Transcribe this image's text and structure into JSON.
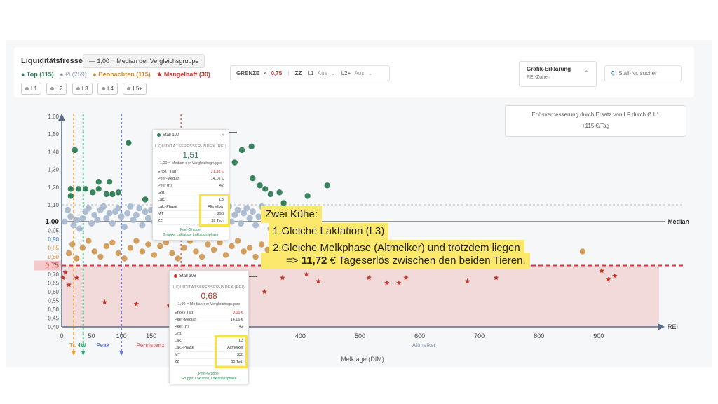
{
  "header": {
    "title": "Liquiditätsfresser",
    "median_chip": "— 1,00 = Median der Vergleichsgruppe",
    "legend": {
      "top": "● Top (115)",
      "avg": "● Ø (259)",
      "watch": "● Beobachten (115)",
      "poor": "★ Mangelhaft (30)"
    },
    "lact_chips": [
      "L1",
      "L2",
      "L3",
      "L4",
      "L5+"
    ],
    "controls": {
      "grenze_label": "GRENZE",
      "grenze_op": "<",
      "grenze_value": "0,75",
      "zz_label": "ZZ",
      "l1_label": "L1",
      "l1_value": "Aus",
      "l2_label": "L2+",
      "l2_value": "Aus"
    },
    "grafik_title": "Grafik-Erklärung",
    "grafik_sub": "REI-Zonen",
    "search_placeholder": "Stall-Nr. sucher"
  },
  "info_box": {
    "text": "Erlösverbesserung durch Ersatz von LF durch Ø L1",
    "value": "+115 €/Tag"
  },
  "colors": {
    "top": "#2e7d55",
    "avg": "#a8b9d0",
    "watch": "#d09a55",
    "poor": "#c0392b",
    "threshold": "#d9383a",
    "zone": "#f2dada"
  },
  "tooltip1": {
    "stall": "Stall 100",
    "caption": "LIQUIDITÄTSFRESSER-INDEX (REI)",
    "value": "1,51",
    "sub": "1,00 = Median der Vergleichsgruppe",
    "rows": [
      [
        "Erlös / Tag",
        "21,38 €"
      ],
      [
        "Peer-Median",
        "14,16 €"
      ],
      [
        "Peer (n)",
        "42"
      ],
      [
        "Grp.",
        ""
      ],
      [
        "Lak.",
        "L3"
      ],
      [
        "Lak.-Phase",
        "Altmelker"
      ],
      [
        "MT",
        "296"
      ],
      [
        "ZZ",
        "32 Tsd."
      ]
    ],
    "foot1": "Peer-Gruppe:",
    "foot2": "Gruppe, Laktation, Laktationsphase"
  },
  "tooltip2": {
    "stall": "Stall 306",
    "caption": "LIQUIDITÄTSFRESSER-INDEX (REI)",
    "value": "0,68",
    "sub": "1,00 = Median der Vergleichsgruppe",
    "rows": [
      [
        "Erlös / Tag",
        "9,66 €"
      ],
      [
        "Peer-Median",
        "14,16 €"
      ],
      [
        "Peer (n)",
        "42"
      ],
      [
        "Grp.",
        ""
      ],
      [
        "Lak.",
        "L3"
      ],
      [
        "Lak.-Phase",
        "Altmelker"
      ],
      [
        "MT",
        "330"
      ],
      [
        "ZZ",
        "50 Tsd."
      ]
    ],
    "foot1": "Peer-Gruppe:",
    "foot2": "Gruppe, Laktation, Laktationsphase"
  },
  "annotation": {
    "line1": "Zwei Kühe:",
    "line2": "1.Gleiche Laktation (L3)",
    "line3": "2.Gleiche Melkphase (Altmelker) und trotzdem liegen",
    "line4_pre": "=> ",
    "line4_bold": "11,72",
    "line4_post": " € Tageserlös zwischen den beiden Tieren."
  },
  "chart_data": {
    "type": "scatter",
    "xlabel": "Melktage (DIM)",
    "ylabel": "",
    "x_axis_end_label": "REI",
    "xlim": [
      0,
      1000
    ],
    "ylim": [
      0.4,
      1.6
    ],
    "x_ticks": [
      0,
      50,
      100,
      150,
      400,
      500,
      600,
      700,
      800,
      900
    ],
    "x_tick_labels": [
      "0",
      "50",
      "100",
      "150",
      "400",
      "500",
      "600",
      "700",
      "800",
      "900"
    ],
    "y_ticks": [
      0.4,
      0.45,
      0.5,
      0.55,
      0.6,
      0.65,
      0.7,
      0.75,
      0.8,
      0.85,
      0.9,
      0.95,
      1.0,
      1.1,
      1.2,
      1.3,
      1.4,
      1.5,
      1.6
    ],
    "y_tick_labels": [
      "0,40",
      "0,45",
      "0,50",
      "0,55",
      "0,60",
      "0,65",
      "0,70",
      "0,75",
      "0,80",
      "0,85",
      "0,90",
      "0,95",
      "1,00",
      "1,10",
      "1,20",
      "1,30",
      "1,40",
      "1,50",
      "1,60"
    ],
    "median": 1.0,
    "median_label": "Median",
    "threshold": 0.75,
    "threshold_label": "0,75",
    "upper_band": 1.1,
    "phase_lines": [
      {
        "x": 20,
        "label": "Tr.",
        "color": "#f39c32"
      },
      {
        "x": 36,
        "label": "4W",
        "color": "#2ea56e"
      },
      {
        "x": 100,
        "label": "Peak",
        "color": "#6674d8"
      },
      {
        "x": 200,
        "label": "Persistenz",
        "color": "#e07070"
      }
    ],
    "phase_text_late": "Altmelker",
    "highlight_arrows": [
      "Stall 100",
      "Stall 306"
    ],
    "series": [
      {
        "name": "Top (115)",
        "values": [
          [
            15,
            1.15
          ],
          [
            22,
            1.41
          ],
          [
            15,
            1.19
          ],
          [
            28,
            1.19
          ],
          [
            40,
            1.19
          ],
          [
            52,
            1.17
          ],
          [
            62,
            1.19
          ],
          [
            75,
            1.16
          ],
          [
            62,
            1.23
          ],
          [
            80,
            1.23
          ],
          [
            85,
            1.16
          ],
          [
            95,
            1.17
          ],
          [
            112,
            1.45
          ],
          [
            140,
            1.13
          ],
          [
            163,
            1.31
          ],
          [
            180,
            1.36
          ],
          [
            185,
            1.22
          ],
          [
            210,
            1.31
          ],
          [
            230,
            1.36
          ],
          [
            253,
            1.47
          ],
          [
            262,
            1.51
          ],
          [
            275,
            1.35
          ],
          [
            290,
            1.34
          ],
          [
            302,
            1.41
          ],
          [
            318,
            1.43
          ],
          [
            320,
            1.25
          ],
          [
            332,
            1.21
          ],
          [
            341,
            1.19
          ],
          [
            350,
            1.16
          ],
          [
            365,
            1.17
          ],
          [
            372,
            1.11
          ],
          [
            412,
            1.15
          ],
          [
            445,
            1.21
          ]
        ]
      },
      {
        "name": "Ø (259)",
        "values": [
          [
            5,
            1.0
          ],
          [
            10,
            1.07
          ],
          [
            15,
            1.03
          ],
          [
            20,
            0.98
          ],
          [
            25,
            1.01
          ],
          [
            30,
            0.96
          ],
          [
            35,
            1.02
          ],
          [
            40,
            1.06
          ],
          [
            45,
            1.08
          ],
          [
            50,
            0.99
          ],
          [
            55,
            1.04
          ],
          [
            60,
            1.01
          ],
          [
            65,
            1.07
          ],
          [
            70,
            1.09
          ],
          [
            75,
            1.02
          ],
          [
            80,
            1.05
          ],
          [
            85,
            0.99
          ],
          [
            90,
            1.06
          ],
          [
            95,
            1.08
          ],
          [
            100,
            1.03
          ],
          [
            105,
            0.97
          ],
          [
            110,
            1.05
          ],
          [
            115,
            1.09
          ],
          [
            120,
            1.01
          ],
          [
            125,
            1.04
          ],
          [
            130,
            1.08
          ],
          [
            135,
            0.98
          ],
          [
            140,
            1.06
          ],
          [
            145,
            1.02
          ],
          [
            150,
            1.07
          ],
          [
            155,
            1.0
          ],
          [
            160,
            1.09
          ],
          [
            165,
            1.04
          ],
          [
            170,
            0.98
          ],
          [
            175,
            1.06
          ],
          [
            180,
            1.02
          ],
          [
            185,
            1.08
          ],
          [
            190,
            1.01
          ],
          [
            195,
            1.05
          ],
          [
            200,
            0.97
          ],
          [
            205,
            1.06
          ],
          [
            210,
            1.03
          ],
          [
            215,
            1.09
          ],
          [
            220,
            1.0
          ],
          [
            225,
            1.04
          ],
          [
            230,
            1.07
          ],
          [
            235,
            0.99
          ],
          [
            240,
            1.05
          ],
          [
            245,
            1.02
          ],
          [
            250,
            1.08
          ],
          [
            255,
            1.01
          ],
          [
            260,
            1.04
          ],
          [
            265,
            0.97
          ],
          [
            270,
            1.06
          ],
          [
            275,
            1.03
          ],
          [
            280,
            1.09
          ],
          [
            285,
            1.0
          ],
          [
            290,
            1.04
          ],
          [
            295,
            1.07
          ],
          [
            300,
            0.99
          ],
          [
            305,
            1.05
          ],
          [
            310,
            1.08
          ],
          [
            315,
            1.02
          ],
          [
            320,
            1.06
          ],
          [
            325,
            0.98
          ],
          [
            330,
            1.03
          ],
          [
            335,
            1.09
          ],
          [
            340,
            1.01
          ],
          [
            345,
            1.05
          ],
          [
            350,
            0.96
          ],
          [
            355,
            1.04
          ],
          [
            360,
            1.07
          ],
          [
            365,
            1.0
          ],
          [
            370,
            1.03
          ]
        ]
      },
      {
        "name": "Beobachten (115)",
        "values": [
          [
            12,
            0.82
          ],
          [
            18,
            0.87
          ],
          [
            25,
            0.79
          ],
          [
            35,
            0.85
          ],
          [
            45,
            0.89
          ],
          [
            55,
            0.83
          ],
          [
            65,
            0.8
          ],
          [
            75,
            0.86
          ],
          [
            85,
            0.88
          ],
          [
            95,
            0.82
          ],
          [
            105,
            0.79
          ],
          [
            115,
            0.85
          ],
          [
            125,
            0.89
          ],
          [
            135,
            0.83
          ],
          [
            145,
            0.87
          ],
          [
            155,
            0.81
          ],
          [
            165,
            0.86
          ],
          [
            175,
            0.88
          ],
          [
            185,
            0.82
          ],
          [
            195,
            0.79
          ],
          [
            205,
            0.85
          ],
          [
            215,
            0.89
          ],
          [
            225,
            0.83
          ],
          [
            235,
            0.8
          ],
          [
            245,
            0.87
          ],
          [
            255,
            0.84
          ],
          [
            265,
            0.88
          ],
          [
            275,
            0.81
          ],
          [
            285,
            0.86
          ],
          [
            295,
            0.89
          ],
          [
            305,
            0.83
          ],
          [
            315,
            0.85
          ],
          [
            325,
            0.8
          ],
          [
            335,
            0.87
          ],
          [
            345,
            0.84
          ],
          [
            355,
            0.88
          ],
          [
            365,
            0.82
          ],
          [
            372,
            0.86
          ],
          [
            873,
            0.83
          ]
        ]
      },
      {
        "name": "Mangelhaft (30)",
        "values": [
          [
            2,
            0.68
          ],
          [
            6,
            0.71
          ],
          [
            12,
            0.64
          ],
          [
            25,
            0.68
          ],
          [
            72,
            0.54
          ],
          [
            125,
            0.53
          ],
          [
            180,
            0.52
          ],
          [
            230,
            0.68
          ],
          [
            290,
            0.7
          ],
          [
            340,
            0.6
          ],
          [
            370,
            0.68
          ],
          [
            410,
            0.7
          ],
          [
            430,
            0.66
          ],
          [
            515,
            0.68
          ],
          [
            545,
            0.65
          ],
          [
            565,
            0.65
          ],
          [
            577,
            0.68
          ],
          [
            680,
            0.66
          ],
          [
            728,
            0.68
          ],
          [
            905,
            0.72
          ],
          [
            916,
            0.67
          ],
          [
            927,
            0.69
          ]
        ]
      }
    ]
  }
}
